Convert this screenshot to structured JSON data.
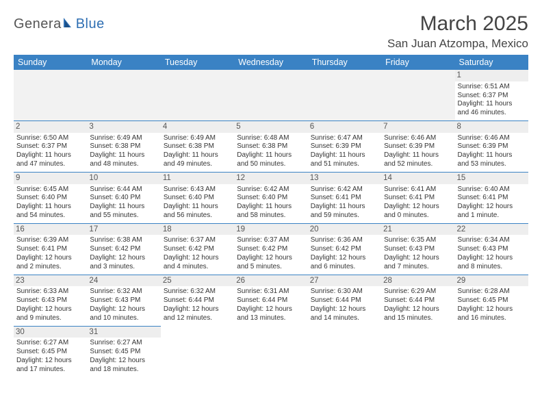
{
  "logo": {
    "part1": "Genera",
    "part2": "Blue"
  },
  "title": "March 2025",
  "location": "San Juan Atzompa, Mexico",
  "colors": {
    "header_bg": "#3a82c4",
    "header_fg": "#ffffff",
    "border": "#3a82c4",
    "daynum_bg": "#eeeeee",
    "logo_accent": "#2f6fb3"
  },
  "weekdays": [
    "Sunday",
    "Monday",
    "Tuesday",
    "Wednesday",
    "Thursday",
    "Friday",
    "Saturday"
  ],
  "weeks": [
    [
      null,
      null,
      null,
      null,
      null,
      null,
      {
        "n": "1",
        "sr": "Sunrise: 6:51 AM",
        "ss": "Sunset: 6:37 PM",
        "dl1": "Daylight: 11 hours",
        "dl2": "and 46 minutes."
      }
    ],
    [
      {
        "n": "2",
        "sr": "Sunrise: 6:50 AM",
        "ss": "Sunset: 6:37 PM",
        "dl1": "Daylight: 11 hours",
        "dl2": "and 47 minutes."
      },
      {
        "n": "3",
        "sr": "Sunrise: 6:49 AM",
        "ss": "Sunset: 6:38 PM",
        "dl1": "Daylight: 11 hours",
        "dl2": "and 48 minutes."
      },
      {
        "n": "4",
        "sr": "Sunrise: 6:49 AM",
        "ss": "Sunset: 6:38 PM",
        "dl1": "Daylight: 11 hours",
        "dl2": "and 49 minutes."
      },
      {
        "n": "5",
        "sr": "Sunrise: 6:48 AM",
        "ss": "Sunset: 6:38 PM",
        "dl1": "Daylight: 11 hours",
        "dl2": "and 50 minutes."
      },
      {
        "n": "6",
        "sr": "Sunrise: 6:47 AM",
        "ss": "Sunset: 6:39 PM",
        "dl1": "Daylight: 11 hours",
        "dl2": "and 51 minutes."
      },
      {
        "n": "7",
        "sr": "Sunrise: 6:46 AM",
        "ss": "Sunset: 6:39 PM",
        "dl1": "Daylight: 11 hours",
        "dl2": "and 52 minutes."
      },
      {
        "n": "8",
        "sr": "Sunrise: 6:46 AM",
        "ss": "Sunset: 6:39 PM",
        "dl1": "Daylight: 11 hours",
        "dl2": "and 53 minutes."
      }
    ],
    [
      {
        "n": "9",
        "sr": "Sunrise: 6:45 AM",
        "ss": "Sunset: 6:40 PM",
        "dl1": "Daylight: 11 hours",
        "dl2": "and 54 minutes."
      },
      {
        "n": "10",
        "sr": "Sunrise: 6:44 AM",
        "ss": "Sunset: 6:40 PM",
        "dl1": "Daylight: 11 hours",
        "dl2": "and 55 minutes."
      },
      {
        "n": "11",
        "sr": "Sunrise: 6:43 AM",
        "ss": "Sunset: 6:40 PM",
        "dl1": "Daylight: 11 hours",
        "dl2": "and 56 minutes."
      },
      {
        "n": "12",
        "sr": "Sunrise: 6:42 AM",
        "ss": "Sunset: 6:40 PM",
        "dl1": "Daylight: 11 hours",
        "dl2": "and 58 minutes."
      },
      {
        "n": "13",
        "sr": "Sunrise: 6:42 AM",
        "ss": "Sunset: 6:41 PM",
        "dl1": "Daylight: 11 hours",
        "dl2": "and 59 minutes."
      },
      {
        "n": "14",
        "sr": "Sunrise: 6:41 AM",
        "ss": "Sunset: 6:41 PM",
        "dl1": "Daylight: 12 hours",
        "dl2": "and 0 minutes."
      },
      {
        "n": "15",
        "sr": "Sunrise: 6:40 AM",
        "ss": "Sunset: 6:41 PM",
        "dl1": "Daylight: 12 hours",
        "dl2": "and 1 minute."
      }
    ],
    [
      {
        "n": "16",
        "sr": "Sunrise: 6:39 AM",
        "ss": "Sunset: 6:41 PM",
        "dl1": "Daylight: 12 hours",
        "dl2": "and 2 minutes."
      },
      {
        "n": "17",
        "sr": "Sunrise: 6:38 AM",
        "ss": "Sunset: 6:42 PM",
        "dl1": "Daylight: 12 hours",
        "dl2": "and 3 minutes."
      },
      {
        "n": "18",
        "sr": "Sunrise: 6:37 AM",
        "ss": "Sunset: 6:42 PM",
        "dl1": "Daylight: 12 hours",
        "dl2": "and 4 minutes."
      },
      {
        "n": "19",
        "sr": "Sunrise: 6:37 AM",
        "ss": "Sunset: 6:42 PM",
        "dl1": "Daylight: 12 hours",
        "dl2": "and 5 minutes."
      },
      {
        "n": "20",
        "sr": "Sunrise: 6:36 AM",
        "ss": "Sunset: 6:42 PM",
        "dl1": "Daylight: 12 hours",
        "dl2": "and 6 minutes."
      },
      {
        "n": "21",
        "sr": "Sunrise: 6:35 AM",
        "ss": "Sunset: 6:43 PM",
        "dl1": "Daylight: 12 hours",
        "dl2": "and 7 minutes."
      },
      {
        "n": "22",
        "sr": "Sunrise: 6:34 AM",
        "ss": "Sunset: 6:43 PM",
        "dl1": "Daylight: 12 hours",
        "dl2": "and 8 minutes."
      }
    ],
    [
      {
        "n": "23",
        "sr": "Sunrise: 6:33 AM",
        "ss": "Sunset: 6:43 PM",
        "dl1": "Daylight: 12 hours",
        "dl2": "and 9 minutes."
      },
      {
        "n": "24",
        "sr": "Sunrise: 6:32 AM",
        "ss": "Sunset: 6:43 PM",
        "dl1": "Daylight: 12 hours",
        "dl2": "and 10 minutes."
      },
      {
        "n": "25",
        "sr": "Sunrise: 6:32 AM",
        "ss": "Sunset: 6:44 PM",
        "dl1": "Daylight: 12 hours",
        "dl2": "and 12 minutes."
      },
      {
        "n": "26",
        "sr": "Sunrise: 6:31 AM",
        "ss": "Sunset: 6:44 PM",
        "dl1": "Daylight: 12 hours",
        "dl2": "and 13 minutes."
      },
      {
        "n": "27",
        "sr": "Sunrise: 6:30 AM",
        "ss": "Sunset: 6:44 PM",
        "dl1": "Daylight: 12 hours",
        "dl2": "and 14 minutes."
      },
      {
        "n": "28",
        "sr": "Sunrise: 6:29 AM",
        "ss": "Sunset: 6:44 PM",
        "dl1": "Daylight: 12 hours",
        "dl2": "and 15 minutes."
      },
      {
        "n": "29",
        "sr": "Sunrise: 6:28 AM",
        "ss": "Sunset: 6:45 PM",
        "dl1": "Daylight: 12 hours",
        "dl2": "and 16 minutes."
      }
    ],
    [
      {
        "n": "30",
        "sr": "Sunrise: 6:27 AM",
        "ss": "Sunset: 6:45 PM",
        "dl1": "Daylight: 12 hours",
        "dl2": "and 17 minutes."
      },
      {
        "n": "31",
        "sr": "Sunrise: 6:27 AM",
        "ss": "Sunset: 6:45 PM",
        "dl1": "Daylight: 12 hours",
        "dl2": "and 18 minutes."
      },
      null,
      null,
      null,
      null,
      null
    ]
  ]
}
